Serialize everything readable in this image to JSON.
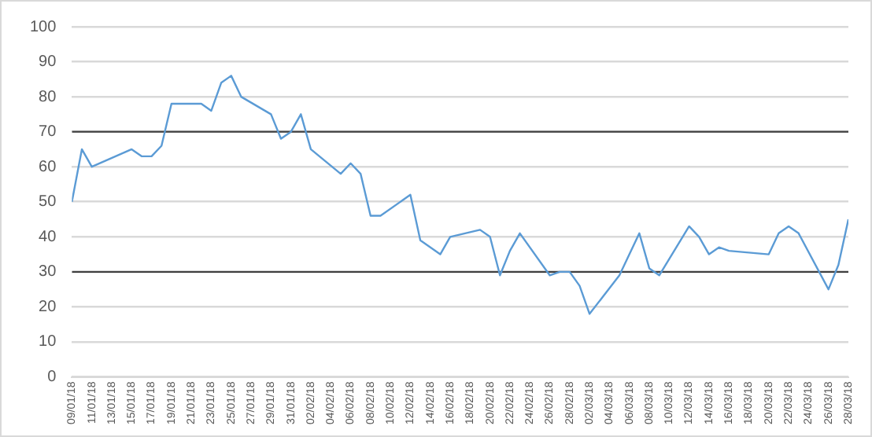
{
  "chart_data": {
    "type": "line",
    "x": [
      "--01-09",
      "--01-10",
      "--01-11",
      "--01-15",
      "--01-16",
      "--01-17",
      "--01-18",
      "--01-19",
      "--01-22",
      "--01-23",
      "--01-24",
      "--01-25",
      "--01-26",
      "--01-29",
      "--01-30",
      "--01-31",
      "--02-01",
      "--02-02",
      "--02-05",
      "--02-06",
      "--02-07",
      "--02-08",
      "--02-09",
      "--02-12",
      "--02-13",
      "--02-15",
      "--02-16",
      "--02-19",
      "--02-20",
      "--02-21",
      "--02-22",
      "--02-23",
      "--02-26",
      "--02-27",
      "--02-28",
      "--03-01",
      "--03-02",
      "--03-05",
      "--03-07",
      "--03-08",
      "--03-09",
      "--03-12",
      "--03-13",
      "--03-14",
      "--03-15",
      "--03-16",
      "--03-20",
      "--03-21",
      "--03-22",
      "--03-23",
      "--03-26",
      "--03-27",
      "--03-28"
    ],
    "series": [
      {
        "color": "#5b9bd5",
        "values": [
          50,
          65,
          60,
          65,
          63,
          63,
          66,
          78,
          78,
          76,
          84,
          86,
          80,
          75,
          68,
          70,
          75,
          65,
          58,
          61,
          58,
          46,
          46,
          52,
          39,
          35,
          40,
          42,
          40,
          29,
          36,
          41,
          29,
          30,
          30,
          26,
          18,
          29,
          41,
          31,
          29,
          43,
          40,
          35,
          37,
          36,
          35,
          41,
          43,
          41,
          25,
          32,
          45
        ]
      },
      {
        "color": "#404040",
        "x": [
          "--01-09",
          "--03-28"
        ],
        "values": [
          70,
          70
        ]
      },
      {
        "color": "#404040",
        "x": [
          "--01-09",
          "--03-28"
        ],
        "values": [
          30,
          30
        ]
      }
    ],
    "xlim": [
      "--01-09",
      "--03-28"
    ],
    "xticks": [
      {
        "value": "--01-09",
        "label": "09/01/18"
      },
      {
        "value": "--01-11",
        "label": "11/01/18"
      },
      {
        "value": "--01-13",
        "label": "13/01/18"
      },
      {
        "value": "--01-15",
        "label": "15/01/18"
      },
      {
        "value": "--01-17",
        "label": "17/01/18"
      },
      {
        "value": "--01-19",
        "label": "19/01/18"
      },
      {
        "value": "--01-21",
        "label": "21/01/18"
      },
      {
        "value": "--01-23",
        "label": "23/01/18"
      },
      {
        "value": "--01-25",
        "label": "25/01/18"
      },
      {
        "value": "--01-27",
        "label": "27/01/18"
      },
      {
        "value": "--01-29",
        "label": "29/01/18"
      },
      {
        "value": "--01-31",
        "label": "31/01/18"
      },
      {
        "value": "--02-02",
        "label": "02/02/18"
      },
      {
        "value": "--02-04",
        "label": "04/02/18"
      },
      {
        "value": "--02-06",
        "label": "06/02/18"
      },
      {
        "value": "--02-08",
        "label": "08/02/18"
      },
      {
        "value": "--02-10",
        "label": "10/02/18"
      },
      {
        "value": "--02-12",
        "label": "12/02/18"
      },
      {
        "value": "--02-14",
        "label": "14/02/18"
      },
      {
        "value": "--02-16",
        "label": "16/02/18"
      },
      {
        "value": "--02-18",
        "label": "18/02/18"
      },
      {
        "value": "--02-20",
        "label": "20/02/18"
      },
      {
        "value": "--02-22",
        "label": "22/02/18"
      },
      {
        "value": "--02-24",
        "label": "24/02/18"
      },
      {
        "value": "--02-26",
        "label": "26/02/18"
      },
      {
        "value": "--02-28",
        "label": "28/02/18"
      },
      {
        "value": "--03-02",
        "label": "02/03/18"
      },
      {
        "value": "--03-04",
        "label": "04/03/18"
      },
      {
        "value": "--03-06",
        "label": "06/03/18"
      },
      {
        "value": "--03-08",
        "label": "08/03/18"
      },
      {
        "value": "--03-10",
        "label": "10/03/18"
      },
      {
        "value": "--03-12",
        "label": "12/03/18"
      },
      {
        "value": "--03-14",
        "label": "14/03/18"
      },
      {
        "value": "--03-16",
        "label": "16/03/18"
      },
      {
        "value": "--03-18",
        "label": "18/03/18"
      },
      {
        "value": "--03-20",
        "label": "20/03/18"
      },
      {
        "value": "--03-22",
        "label": "22/03/18"
      },
      {
        "value": "--03-24",
        "label": "24/03/18"
      },
      {
        "value": "--03-26",
        "label": "26/03/18"
      },
      {
        "value": "--03-28",
        "label": "28/03/18"
      }
    ],
    "ylim": [
      0,
      100
    ],
    "yticks": [
      0,
      10,
      20,
      30,
      40,
      50,
      60,
      70,
      80,
      90,
      100
    ],
    "grid": "y",
    "marker": "none",
    "line_style": "solid",
    "legend": false
  }
}
